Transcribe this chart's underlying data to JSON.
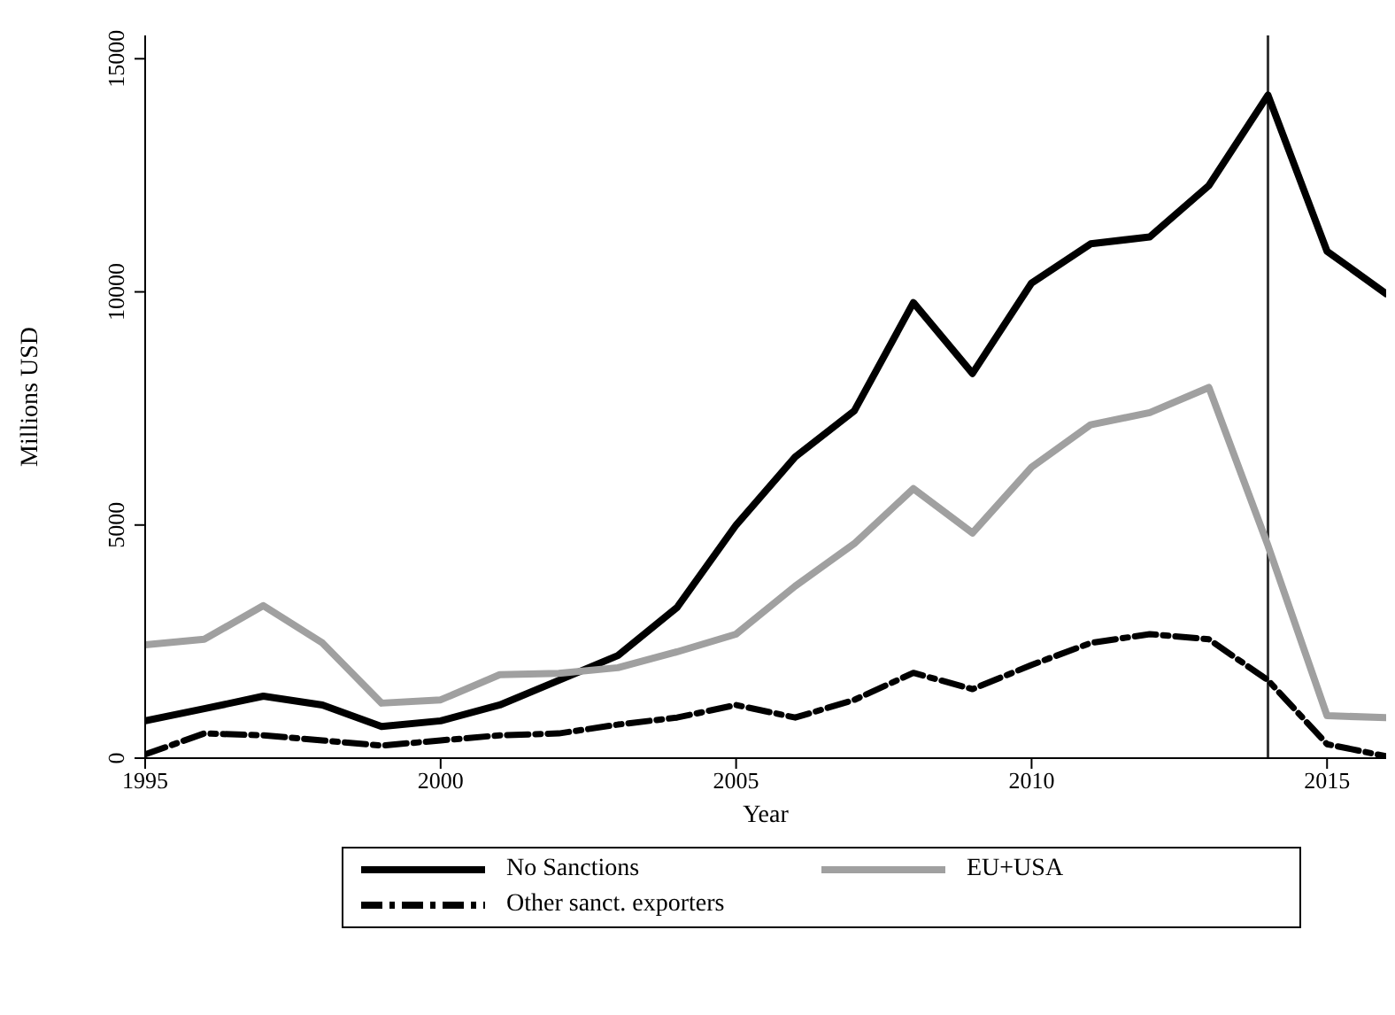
{
  "chart_data": {
    "type": "line",
    "xlabel": "Year",
    "ylabel": "Millions USD",
    "x": [
      1995,
      1996,
      1997,
      1998,
      1999,
      2000,
      2001,
      2002,
      2003,
      2004,
      2005,
      2006,
      2007,
      2008,
      2009,
      2010,
      2011,
      2012,
      2013,
      2014,
      2015,
      2016
    ],
    "series": [
      {
        "name": "No Sanctions",
        "color": "#000000",
        "line_style": "solid",
        "values": [
          800,
          1060,
          1330,
          1140,
          680,
          800,
          1140,
          1670,
          2200,
          3230,
          5000,
          6460,
          7450,
          9770,
          8250,
          10190,
          11030,
          11180,
          12280,
          14220,
          10870,
          9960
        ]
      },
      {
        "name": "EU+USA",
        "color": "#a0a0a0",
        "line_style": "solid",
        "values": [
          2430,
          2550,
          3270,
          2470,
          1180,
          1250,
          1790,
          1820,
          1940,
          2280,
          2660,
          3690,
          4600,
          5780,
          4830,
          6240,
          7150,
          7410,
          7950,
          4560,
          910,
          870
        ]
      },
      {
        "name": "Other sanct. exporters",
        "color": "#000000",
        "line_style": "dashed",
        "values": [
          80,
          530,
          490,
          380,
          270,
          380,
          490,
          530,
          720,
          870,
          1140,
          870,
          1250,
          1830,
          1480,
          2000,
          2470,
          2660,
          2550,
          1670,
          300,
          40
        ]
      }
    ],
    "xlim": [
      1995,
      2016
    ],
    "xticks": [
      1995,
      2000,
      2005,
      2010,
      2015
    ],
    "ylim": [
      0,
      15500
    ],
    "yticks": [
      0,
      5000,
      10000,
      15000
    ],
    "ref_lines": [
      {
        "axis": "x",
        "value": 2014,
        "color": "#333333"
      }
    ],
    "grid": false,
    "legend": "bottom",
    "marker": "none"
  }
}
